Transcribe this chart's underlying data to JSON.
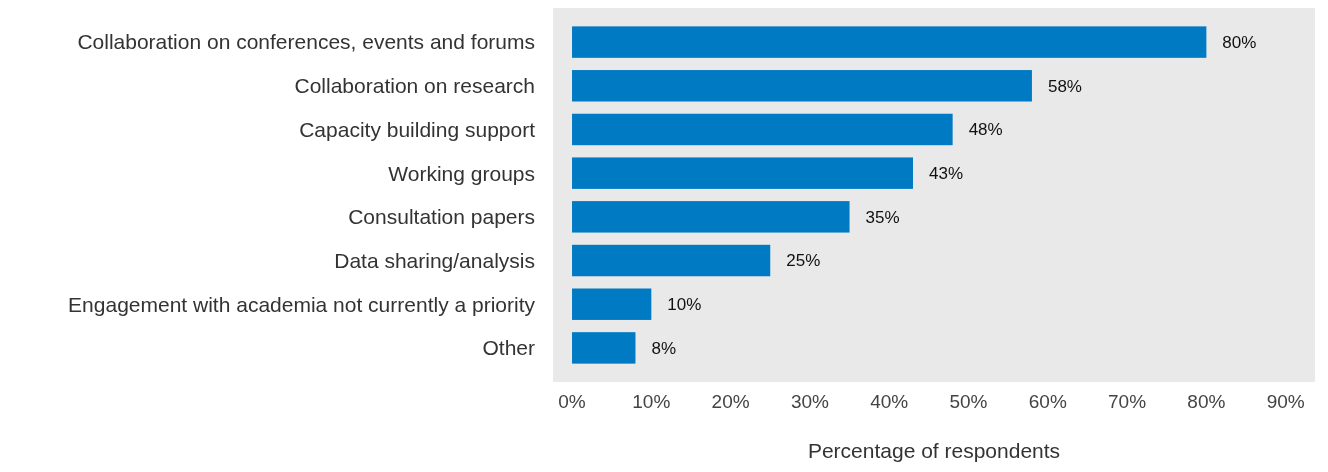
{
  "chart_data": {
    "type": "bar",
    "orientation": "horizontal",
    "xlabel": "Percentage of respondents",
    "categories": [
      "Collaboration on conferences, events and forums",
      "Collaboration on research",
      "Capacity building support",
      "Working groups",
      "Consultation papers",
      "Data sharing/analysis",
      "Engagement with academia not currently a priority",
      "Other"
    ],
    "values": [
      80,
      58,
      48,
      43,
      35,
      25,
      10,
      8
    ],
    "value_labels": [
      "80%",
      "58%",
      "48%",
      "43%",
      "35%",
      "25%",
      "10%",
      "8%"
    ],
    "color": "#007ac3",
    "xlim": [
      -2.4,
      93.7
    ],
    "xticks": [
      {
        "value": 0,
        "label": "0%"
      },
      {
        "value": 10,
        "label": "10%"
      },
      {
        "value": 20,
        "label": "20%"
      },
      {
        "value": 30,
        "label": "30%"
      },
      {
        "value": 40,
        "label": "40%"
      },
      {
        "value": 50,
        "label": "50%"
      },
      {
        "value": 60,
        "label": "60%"
      },
      {
        "value": 70,
        "label": "70%"
      },
      {
        "value": 80,
        "label": "80%"
      },
      {
        "value": 90,
        "label": "90%"
      }
    ]
  }
}
